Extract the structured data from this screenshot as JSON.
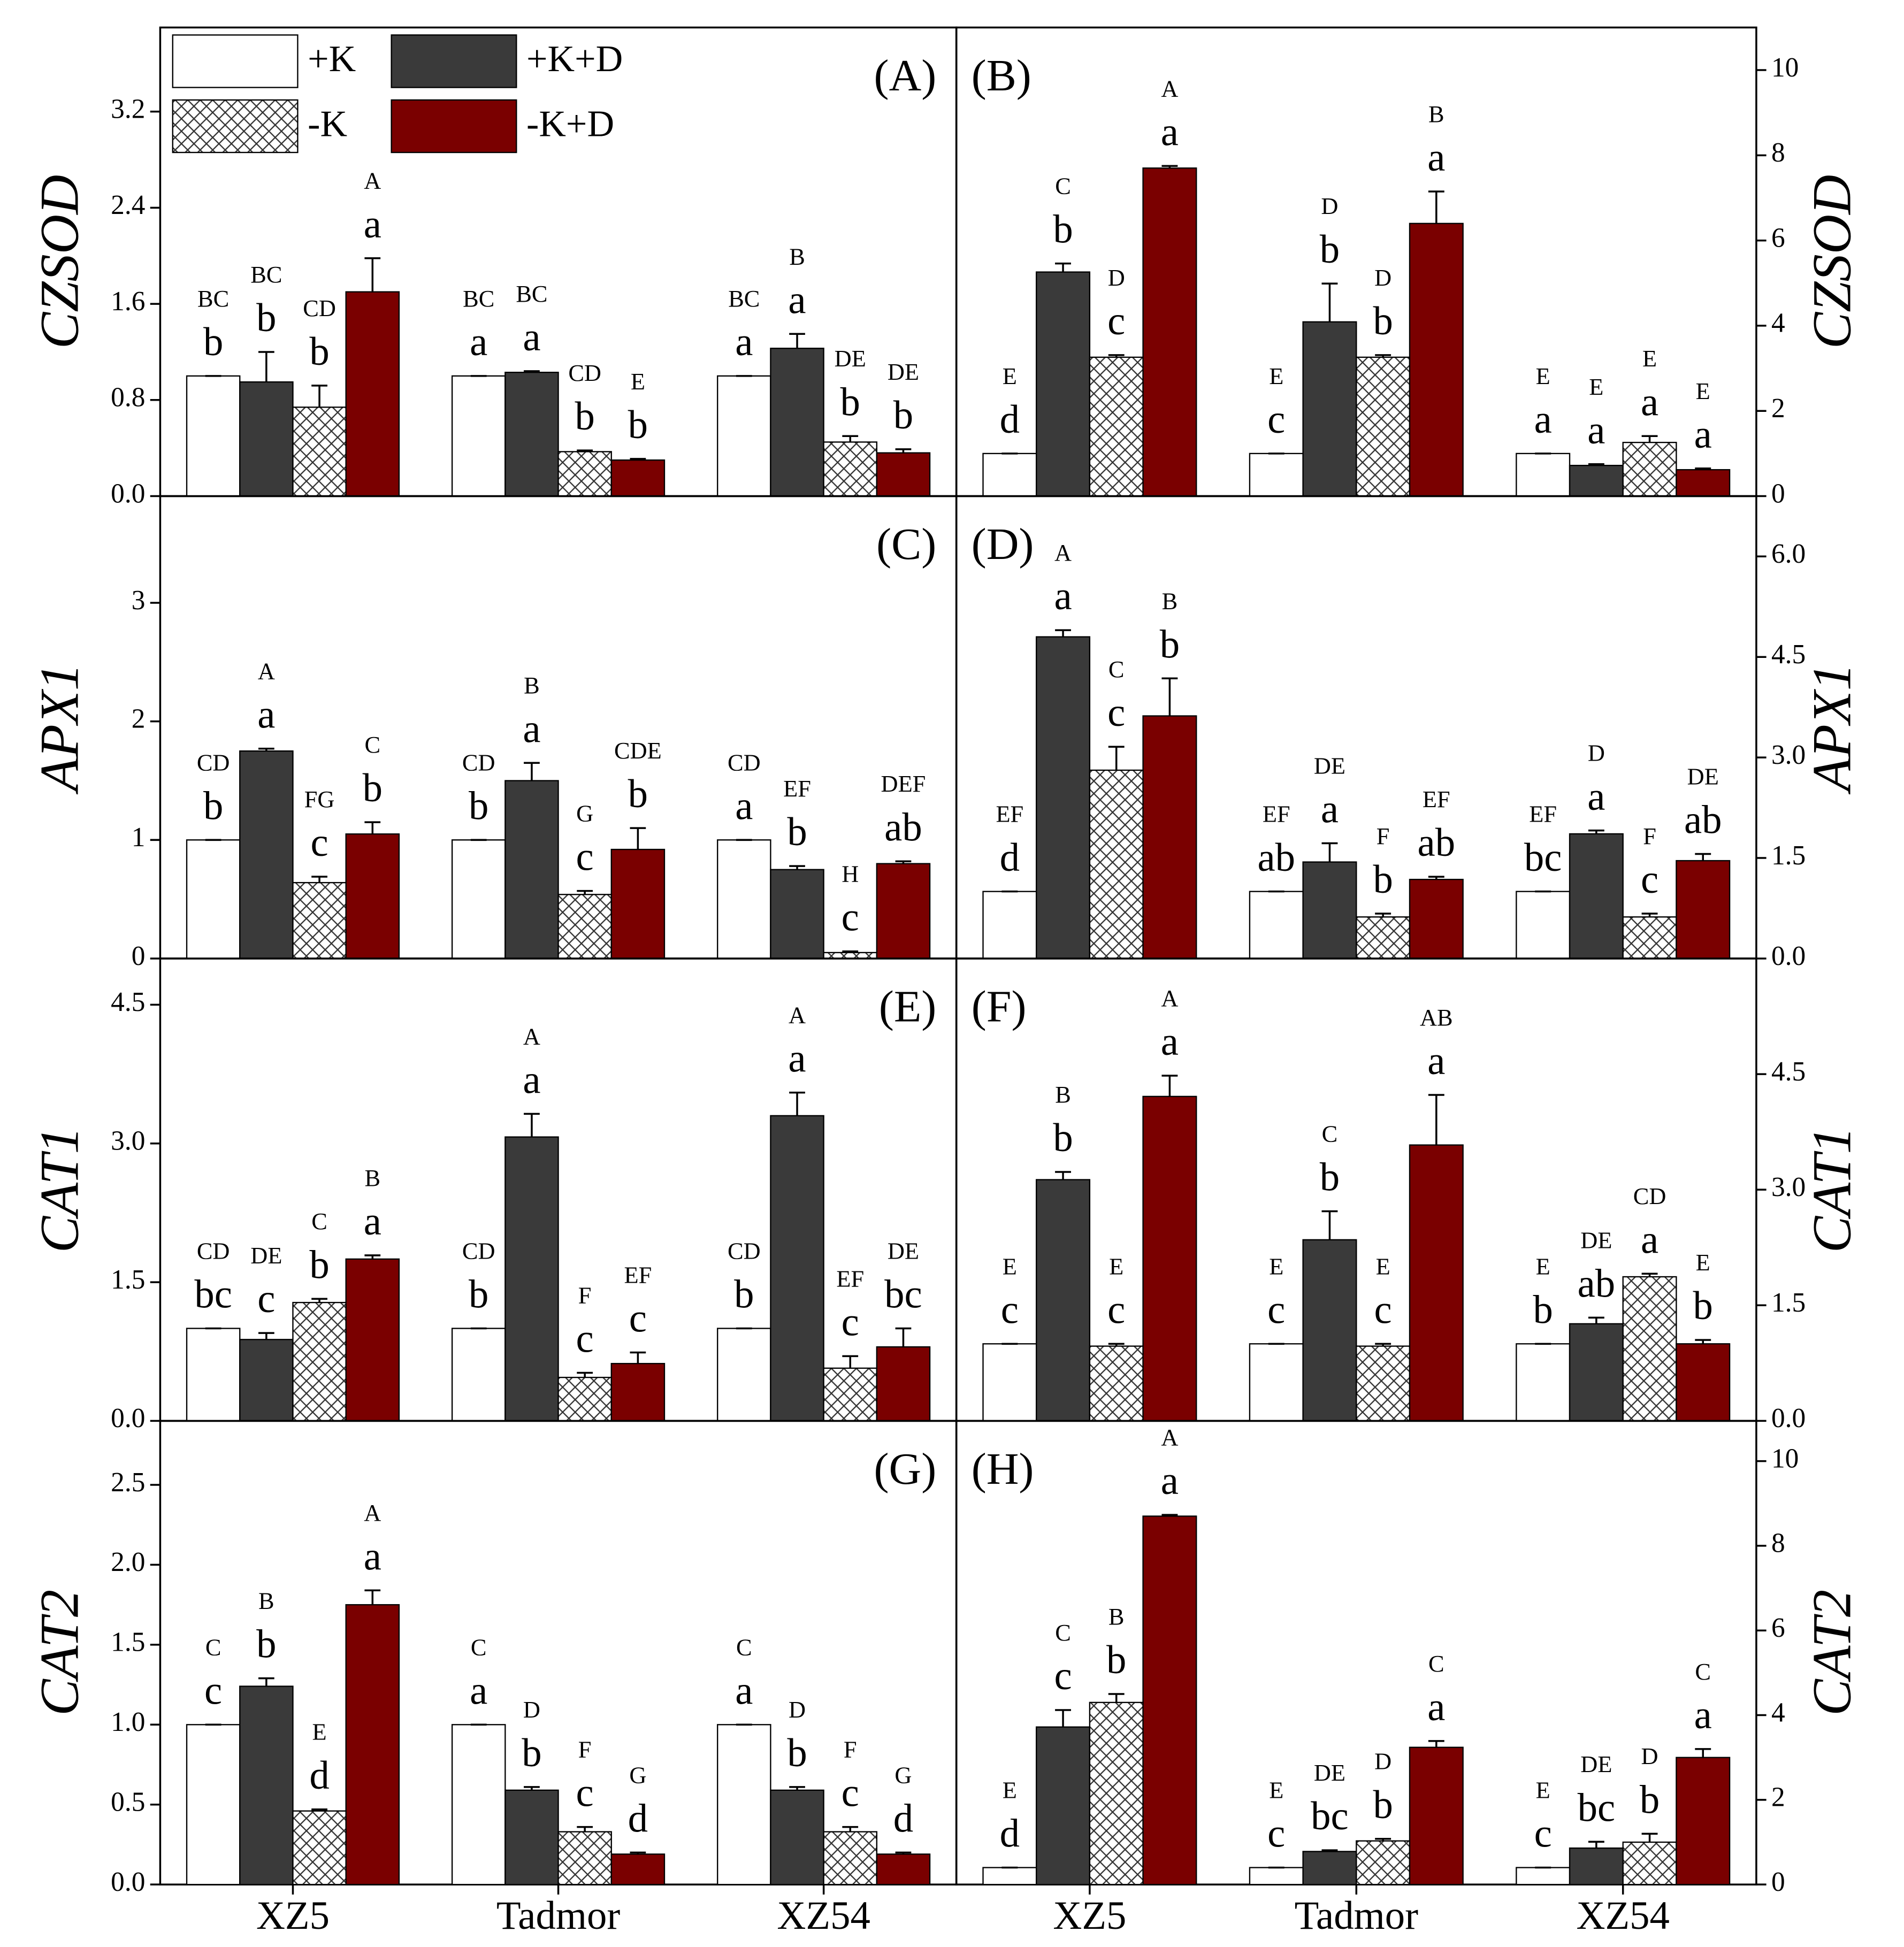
{
  "chart_data": [
    {
      "type": "bar",
      "panel": "(A)",
      "ylabel": "CZSOD",
      "yaxis_side": "left",
      "legend": "upper left",
      "ylim": [
        0,
        3.9
      ],
      "yticks": [
        {
          "value": 0,
          "label": "0.0"
        },
        0.8,
        1.6,
        2.4,
        3.2
      ],
      "series": [
        {
          "name": "+K",
          "color": "#ffffff",
          "values": [
            1.0,
            1.0,
            1.0
          ],
          "errors": [
            0,
            0,
            0
          ],
          "letters": [
            "b",
            "a",
            "a"
          ],
          "groups": [
            "BC",
            "BC",
            "BC"
          ]
        },
        {
          "name": "+K+D",
          "color": "#3a3a3a",
          "values": [
            0.95,
            1.03,
            1.23
          ],
          "errors": [
            0.25,
            0.01,
            0.12
          ],
          "letters": [
            "b",
            "a",
            "a"
          ],
          "groups": [
            "BC",
            "BC",
            "B"
          ]
        },
        {
          "name": "-K",
          "color": "#ffffff",
          "pattern": "crosshatch",
          "values": [
            0.74,
            0.37,
            0.45
          ],
          "errors": [
            0.18,
            0.01,
            0.05
          ],
          "letters": [
            "b",
            "b",
            "b"
          ],
          "groups": [
            "CD",
            "CD",
            "DE"
          ]
        },
        {
          "name": "-K+D",
          "color": "#7a0000",
          "values": [
            1.7,
            0.3,
            0.36
          ],
          "errors": [
            0.28,
            0.01,
            0.03
          ],
          "letters": [
            "a",
            "b",
            "b"
          ],
          "groups": [
            "A",
            "E",
            "DE"
          ]
        }
      ]
    },
    {
      "type": "bar",
      "panel": "(B)",
      "ylabel": "CZSOD",
      "yaxis_side": "right",
      "ylim": [
        0,
        11
      ],
      "yticks": [
        0,
        2,
        4,
        6,
        8,
        10
      ],
      "series": [
        {
          "color": "#ffffff",
          "values": [
            1.0,
            1.0,
            1.0
          ],
          "errors": [
            0,
            0,
            0
          ],
          "letters": [
            "d",
            "c",
            "a"
          ],
          "groups": [
            "E",
            "E",
            "E"
          ]
        },
        {
          "color": "#3a3a3a",
          "values": [
            5.26,
            4.09,
            0.72
          ],
          "errors": [
            0.2,
            0.9,
            0.03
          ],
          "letters": [
            "b",
            "b",
            "a"
          ],
          "groups": [
            "C",
            "D",
            "E"
          ]
        },
        {
          "color": "#ffffff",
          "pattern": "crosshatch",
          "values": [
            3.26,
            3.26,
            1.26
          ],
          "errors": [
            0.05,
            0.05,
            0.15
          ],
          "letters": [
            "c",
            "b",
            "a"
          ],
          "groups": [
            "D",
            "D",
            "E"
          ]
        },
        {
          "color": "#7a0000",
          "values": [
            7.7,
            6.4,
            0.62
          ],
          "errors": [
            0.05,
            0.75,
            0.03
          ],
          "letters": [
            "a",
            "a",
            "a"
          ],
          "groups": [
            "A",
            "B",
            "E"
          ]
        }
      ]
    },
    {
      "type": "bar",
      "panel": "(C)",
      "ylabel": "APX1",
      "yaxis_side": "left",
      "ylim": [
        0,
        3.9
      ],
      "yticks": [
        0,
        1,
        2,
        3
      ],
      "series": [
        {
          "color": "#ffffff",
          "values": [
            1.0,
            1.0,
            1.0
          ],
          "errors": [
            0,
            0,
            0
          ],
          "letters": [
            "b",
            "b",
            "a"
          ],
          "groups": [
            "CD",
            "CD",
            "CD"
          ]
        },
        {
          "color": "#3a3a3a",
          "values": [
            1.75,
            1.5,
            0.75
          ],
          "errors": [
            0.02,
            0.15,
            0.03
          ],
          "letters": [
            "a",
            "a",
            "b"
          ],
          "groups": [
            "A",
            "B",
            "EF"
          ]
        },
        {
          "color": "#ffffff",
          "pattern": "crosshatch",
          "values": [
            0.64,
            0.54,
            0.05
          ],
          "errors": [
            0.05,
            0.03,
            0.01
          ],
          "letters": [
            "c",
            "c",
            "c"
          ],
          "groups": [
            "FG",
            "G",
            "H"
          ]
        },
        {
          "color": "#7a0000",
          "values": [
            1.05,
            0.92,
            0.8
          ],
          "errors": [
            0.1,
            0.18,
            0.02
          ],
          "letters": [
            "b",
            "b",
            "ab"
          ],
          "groups": [
            "C",
            "CDE",
            "DEF"
          ]
        }
      ]
    },
    {
      "type": "bar",
      "panel": "(D)",
      "ylabel": "APX1",
      "yaxis_side": "right",
      "ylim": [
        0,
        6.9
      ],
      "yticks": [
        {
          "value": 0,
          "label": "0.0"
        },
        1.5,
        {
          "value": 3,
          "label": "3.0"
        },
        4.5,
        {
          "value": 6,
          "label": "6.0"
        }
      ],
      "series": [
        {
          "color": "#ffffff",
          "values": [
            1.0,
            1.0,
            1.0
          ],
          "errors": [
            0,
            0,
            0
          ],
          "letters": [
            "d",
            "ab",
            "bc"
          ],
          "groups": [
            "EF",
            "EF",
            "EF"
          ]
        },
        {
          "color": "#3a3a3a",
          "values": [
            4.8,
            1.44,
            1.86
          ],
          "errors": [
            0.1,
            0.28,
            0.05
          ],
          "letters": [
            "a",
            "a",
            "a"
          ],
          "groups": [
            "A",
            "DE",
            "D"
          ]
        },
        {
          "color": "#ffffff",
          "pattern": "crosshatch",
          "values": [
            2.81,
            0.62,
            0.62
          ],
          "errors": [
            0.35,
            0.05,
            0.05
          ],
          "letters": [
            "c",
            "b",
            "c"
          ],
          "groups": [
            "C",
            "F",
            "F"
          ]
        },
        {
          "color": "#7a0000",
          "values": [
            3.62,
            1.18,
            1.46
          ],
          "errors": [
            0.56,
            0.04,
            0.1
          ],
          "letters": [
            "b",
            "ab",
            "ab"
          ],
          "groups": [
            "B",
            "EF",
            "DE"
          ]
        }
      ]
    },
    {
      "type": "bar",
      "panel": "(E)",
      "ylabel": "CAT1",
      "yaxis_side": "left",
      "ylim": [
        0,
        5.0
      ],
      "yticks": [
        {
          "value": 0,
          "label": "0.0"
        },
        1.5,
        {
          "value": 3,
          "label": "3.0"
        },
        4.5
      ],
      "series": [
        {
          "color": "#ffffff",
          "values": [
            1.0,
            1.0,
            1.0
          ],
          "errors": [
            0,
            0,
            0
          ],
          "letters": [
            "bc",
            "b",
            "b"
          ],
          "groups": [
            "CD",
            "CD",
            "CD"
          ]
        },
        {
          "color": "#3a3a3a",
          "values": [
            0.88,
            3.07,
            3.3
          ],
          "errors": [
            0.07,
            0.25,
            0.25
          ],
          "letters": [
            "c",
            "a",
            "a"
          ],
          "groups": [
            "DE",
            "A",
            "A"
          ]
        },
        {
          "color": "#ffffff",
          "pattern": "crosshatch",
          "values": [
            1.28,
            0.47,
            0.57
          ],
          "errors": [
            0.04,
            0.05,
            0.13
          ],
          "letters": [
            "b",
            "c",
            "c"
          ],
          "groups": [
            "C",
            "F",
            "EF"
          ]
        },
        {
          "color": "#7a0000",
          "values": [
            1.75,
            0.62,
            0.8
          ],
          "errors": [
            0.04,
            0.12,
            0.2
          ],
          "letters": [
            "a",
            "c",
            "bc"
          ],
          "groups": [
            "B",
            "EF",
            "DE"
          ]
        }
      ]
    },
    {
      "type": "bar",
      "panel": "(F)",
      "ylabel": "CAT1",
      "yaxis_side": "right",
      "ylim": [
        0,
        6.0
      ],
      "yticks": [
        {
          "value": 0,
          "label": "0.0"
        },
        1.5,
        {
          "value": 3,
          "label": "3.0"
        },
        4.5
      ],
      "series": [
        {
          "color": "#ffffff",
          "values": [
            1.0,
            1.0,
            1.0
          ],
          "errors": [
            0,
            0,
            0
          ],
          "letters": [
            "c",
            "c",
            "b"
          ],
          "groups": [
            "E",
            "E",
            "E"
          ]
        },
        {
          "color": "#3a3a3a",
          "values": [
            3.13,
            2.35,
            1.26
          ],
          "errors": [
            0.1,
            0.37,
            0.08
          ],
          "letters": [
            "b",
            "b",
            "ab"
          ],
          "groups": [
            "B",
            "C",
            "DE"
          ]
        },
        {
          "color": "#ffffff",
          "pattern": "crosshatch",
          "values": [
            0.97,
            0.97,
            1.87
          ],
          "errors": [
            0.03,
            0.03,
            0.04
          ],
          "letters": [
            "c",
            "c",
            "a"
          ],
          "groups": [
            "E",
            "E",
            "CD"
          ]
        },
        {
          "color": "#7a0000",
          "values": [
            4.21,
            3.58,
            1.0
          ],
          "errors": [
            0.27,
            0.65,
            0.05
          ],
          "letters": [
            "a",
            "a",
            "b"
          ],
          "groups": [
            "A",
            "AB",
            "E"
          ]
        }
      ]
    },
    {
      "type": "bar",
      "panel": "(G)",
      "ylabel": "CAT2",
      "yaxis_side": "left",
      "categories": [
        "XZ5",
        "Tadmor",
        "XZ54"
      ],
      "ylim": [
        0,
        2.9
      ],
      "yticks": [
        {
          "value": 0,
          "label": "0.0"
        },
        0.5,
        {
          "value": 1,
          "label": "1.0"
        },
        1.5,
        {
          "value": 2,
          "label": "2.0"
        },
        2.5
      ],
      "series": [
        {
          "color": "#ffffff",
          "values": [
            1.0,
            1.0,
            1.0
          ],
          "errors": [
            0,
            0,
            0
          ],
          "letters": [
            "c",
            "a",
            "a"
          ],
          "groups": [
            "C",
            "C",
            "C"
          ]
        },
        {
          "color": "#3a3a3a",
          "values": [
            1.24,
            0.59,
            0.59
          ],
          "errors": [
            0.05,
            0.02,
            0.02
          ],
          "letters": [
            "b",
            "b",
            "b"
          ],
          "groups": [
            "B",
            "D",
            "D"
          ]
        },
        {
          "color": "#ffffff",
          "pattern": "crosshatch",
          "values": [
            0.46,
            0.33,
            0.33
          ],
          "errors": [
            0.01,
            0.03,
            0.03
          ],
          "letters": [
            "d",
            "c",
            "c"
          ],
          "groups": [
            "E",
            "F",
            "F"
          ]
        },
        {
          "color": "#7a0000",
          "values": [
            1.75,
            0.19,
            0.19
          ],
          "errors": [
            0.09,
            0.01,
            0.01
          ],
          "letters": [
            "a",
            "d",
            "d"
          ],
          "groups": [
            "A",
            "G",
            "G"
          ]
        }
      ]
    },
    {
      "type": "bar",
      "panel": "(H)",
      "ylabel": "CAT2",
      "yaxis_side": "right",
      "categories": [
        "XZ5",
        "Tadmor",
        "XZ54"
      ],
      "ylim": [
        0,
        10.95
      ],
      "yticks": [
        0,
        2,
        4,
        6,
        8,
        10
      ],
      "series": [
        {
          "color": "#ffffff",
          "values": [
            0.4,
            0.4,
            0.4
          ],
          "errors": [
            0,
            0,
            0
          ],
          "letters": [
            "d",
            "c",
            "c"
          ],
          "groups": [
            "E",
            "E",
            "E"
          ]
        },
        {
          "color": "#3a3a3a",
          "values": [
            3.72,
            0.78,
            0.86
          ],
          "errors": [
            0.4,
            0.03,
            0.15
          ],
          "letters": [
            "c",
            "bc",
            "bc"
          ],
          "groups": [
            "C",
            "DE",
            "DE"
          ]
        },
        {
          "color": "#ffffff",
          "pattern": "crosshatch",
          "values": [
            4.3,
            1.03,
            1.0
          ],
          "errors": [
            0.2,
            0.05,
            0.2
          ],
          "letters": [
            "b",
            "b",
            "b"
          ],
          "groups": [
            "B",
            "D",
            "D"
          ]
        },
        {
          "color": "#7a0000",
          "values": [
            8.7,
            3.24,
            3.0
          ],
          "errors": [
            0.03,
            0.15,
            0.2
          ],
          "letters": [
            "a",
            "a",
            "a"
          ],
          "groups": [
            "A",
            "C",
            "C"
          ]
        }
      ]
    }
  ]
}
